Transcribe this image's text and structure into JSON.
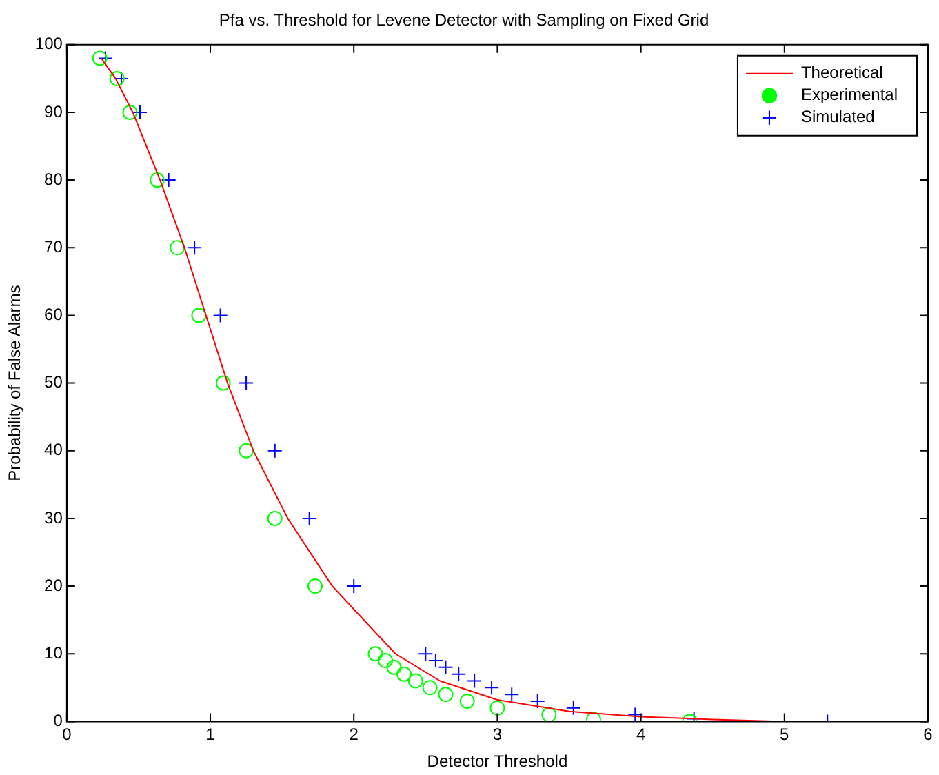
{
  "chart_data": {
    "type": "scatter",
    "title": "Pfa vs. Threshold for Levene Detector with Sampling on Fixed Grid",
    "xlabel": "Detector Threshold",
    "ylabel": "Probability of False Alarms",
    "xlim": [
      0,
      6
    ],
    "xticks": [
      0,
      1,
      2,
      3,
      4,
      5,
      6
    ],
    "ylim": [
      0,
      100
    ],
    "yticks": [
      0,
      10,
      20,
      30,
      40,
      50,
      60,
      70,
      80,
      90,
      100
    ],
    "grid": false,
    "legend": "top right",
    "series": [
      {
        "name": "Theoretical",
        "type": "line",
        "color": "#ff0000",
        "marker": "none",
        "line_style": "solid",
        "x": [
          0.24,
          0.34,
          0.46,
          0.65,
          0.82,
          0.97,
          1.12,
          1.3,
          1.54,
          1.85,
          2.29,
          2.6,
          3.0,
          3.5,
          4.0,
          4.5,
          5.0
        ],
        "values": [
          98,
          95,
          90,
          80,
          70,
          60,
          50,
          40,
          30,
          20,
          10,
          6,
          3.2,
          1.5,
          0.7,
          0.3,
          0
        ]
      },
      {
        "name": "Experimental",
        "color": "#00ff00",
        "marker": "circle",
        "x": [
          0.23,
          0.35,
          0.44,
          0.63,
          0.77,
          0.92,
          1.09,
          1.25,
          1.45,
          1.73,
          2.15,
          2.22,
          2.28,
          2.35,
          2.43,
          2.53,
          2.64,
          2.79,
          3.0,
          3.36,
          3.67,
          4.34
        ],
        "values": [
          98,
          95,
          90,
          80,
          70,
          60,
          50,
          40,
          30,
          20,
          10,
          9,
          8,
          7,
          6,
          5,
          4,
          3,
          2,
          1,
          0.3,
          0
        ]
      },
      {
        "name": "Simulated",
        "color": "#0000ff",
        "marker": "cross",
        "x": [
          0.27,
          0.38,
          0.51,
          0.71,
          0.89,
          1.07,
          1.25,
          1.45,
          1.69,
          2.0,
          2.5,
          2.57,
          2.64,
          2.73,
          2.84,
          2.96,
          3.1,
          3.28,
          3.53,
          3.96,
          4.37,
          5.3
        ],
        "values": [
          98,
          95,
          90,
          80,
          70,
          60,
          50,
          40,
          30,
          20,
          10,
          9,
          8,
          7,
          6,
          5,
          4,
          3,
          2,
          1,
          0.4,
          0
        ]
      }
    ]
  }
}
